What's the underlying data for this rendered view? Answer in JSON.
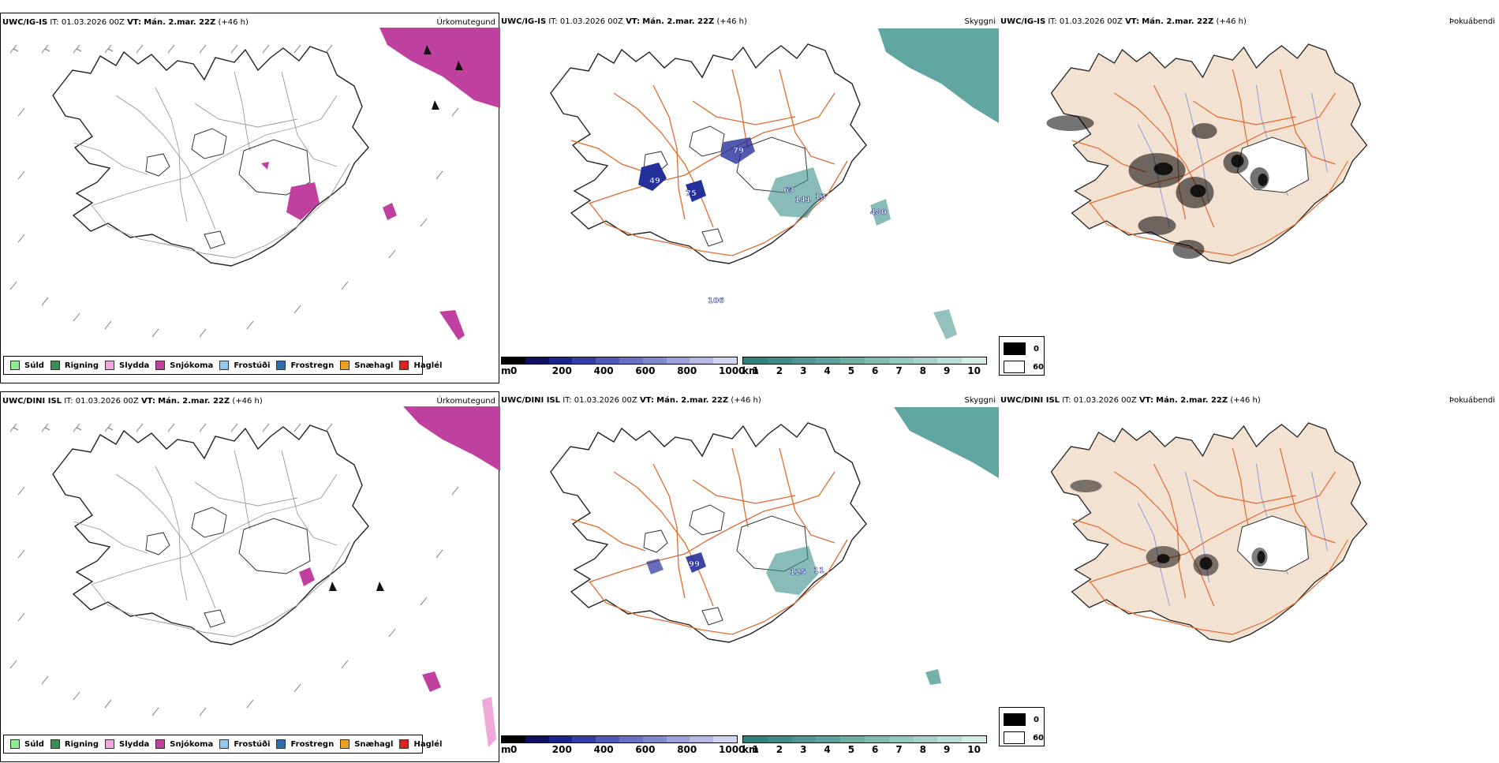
{
  "rows": [
    {
      "model": "UWC/IG-IS",
      "it_label": "IT:",
      "it_value": "01.03.2026 00Z",
      "vt_label": "VT:",
      "vt_value": "Mán. 2.mar. 22Z",
      "lead": "(+46 h)",
      "cloud_labels": [
        "49",
        "75",
        "79",
        "63",
        "141",
        "13",
        "480",
        "106"
      ]
    },
    {
      "model": "UWC/DINI ISL",
      "it_label": "IT:",
      "it_value": "01.03.2026 00Z",
      "vt_label": "VT:",
      "vt_value": "Mán. 2.mar. 22Z",
      "lead": "(+46 h)",
      "cloud_labels": [
        "99",
        "125",
        "11"
      ]
    }
  ],
  "panel_titles": {
    "precip": "Úrkomutegund",
    "cloud": "Skyggni",
    "fog": "Þokuábendi"
  },
  "precip_legend": [
    {
      "label": "Súld",
      "color": "#90ee90"
    },
    {
      "label": "Rigning",
      "color": "#3c8c5a"
    },
    {
      "label": "Slydda",
      "color": "#f0a8d8"
    },
    {
      "label": "Snjókoma",
      "color": "#c040a0"
    },
    {
      "label": "Frostúði",
      "color": "#90c8f0"
    },
    {
      "label": "Frostregn",
      "color": "#2c6cb0"
    },
    {
      "label": "Snæhagl",
      "color": "#f0a020"
    },
    {
      "label": "Haglél",
      "color": "#e02020"
    }
  ],
  "ceiling_bar": {
    "unit": "m",
    "ticks": [
      "0",
      "200",
      "400",
      "600",
      "800",
      "1000"
    ],
    "colors": [
      "#000000",
      "#101060",
      "#1a2390",
      "#3440a8",
      "#5058b8",
      "#6a70c4",
      "#8488d0",
      "#9ea0dc",
      "#b8bae6",
      "#d2d4f0"
    ]
  },
  "visibility_bar": {
    "unit": "km",
    "ticks": [
      "1",
      "2",
      "3",
      "4",
      "5",
      "6",
      "7",
      "8",
      "9",
      "10"
    ],
    "colors": [
      "#2e8078",
      "#3e8c84",
      "#4e9890",
      "#5ea49c",
      "#6eb0a8",
      "#80bcb4",
      "#92c8c0",
      "#a6d4cc",
      "#badfd8",
      "#d4ece8"
    ]
  },
  "fog_legend": [
    {
      "label": "0",
      "color": "#000000"
    },
    {
      "label": "60",
      "color": "#ffffff"
    }
  ],
  "colors": {
    "land": "#f3e1d2",
    "road": "#e06a30",
    "river": "#7f95e8",
    "snow": "#c040a0",
    "ceiling": "#25319a",
    "visibility": "#3a9088"
  }
}
